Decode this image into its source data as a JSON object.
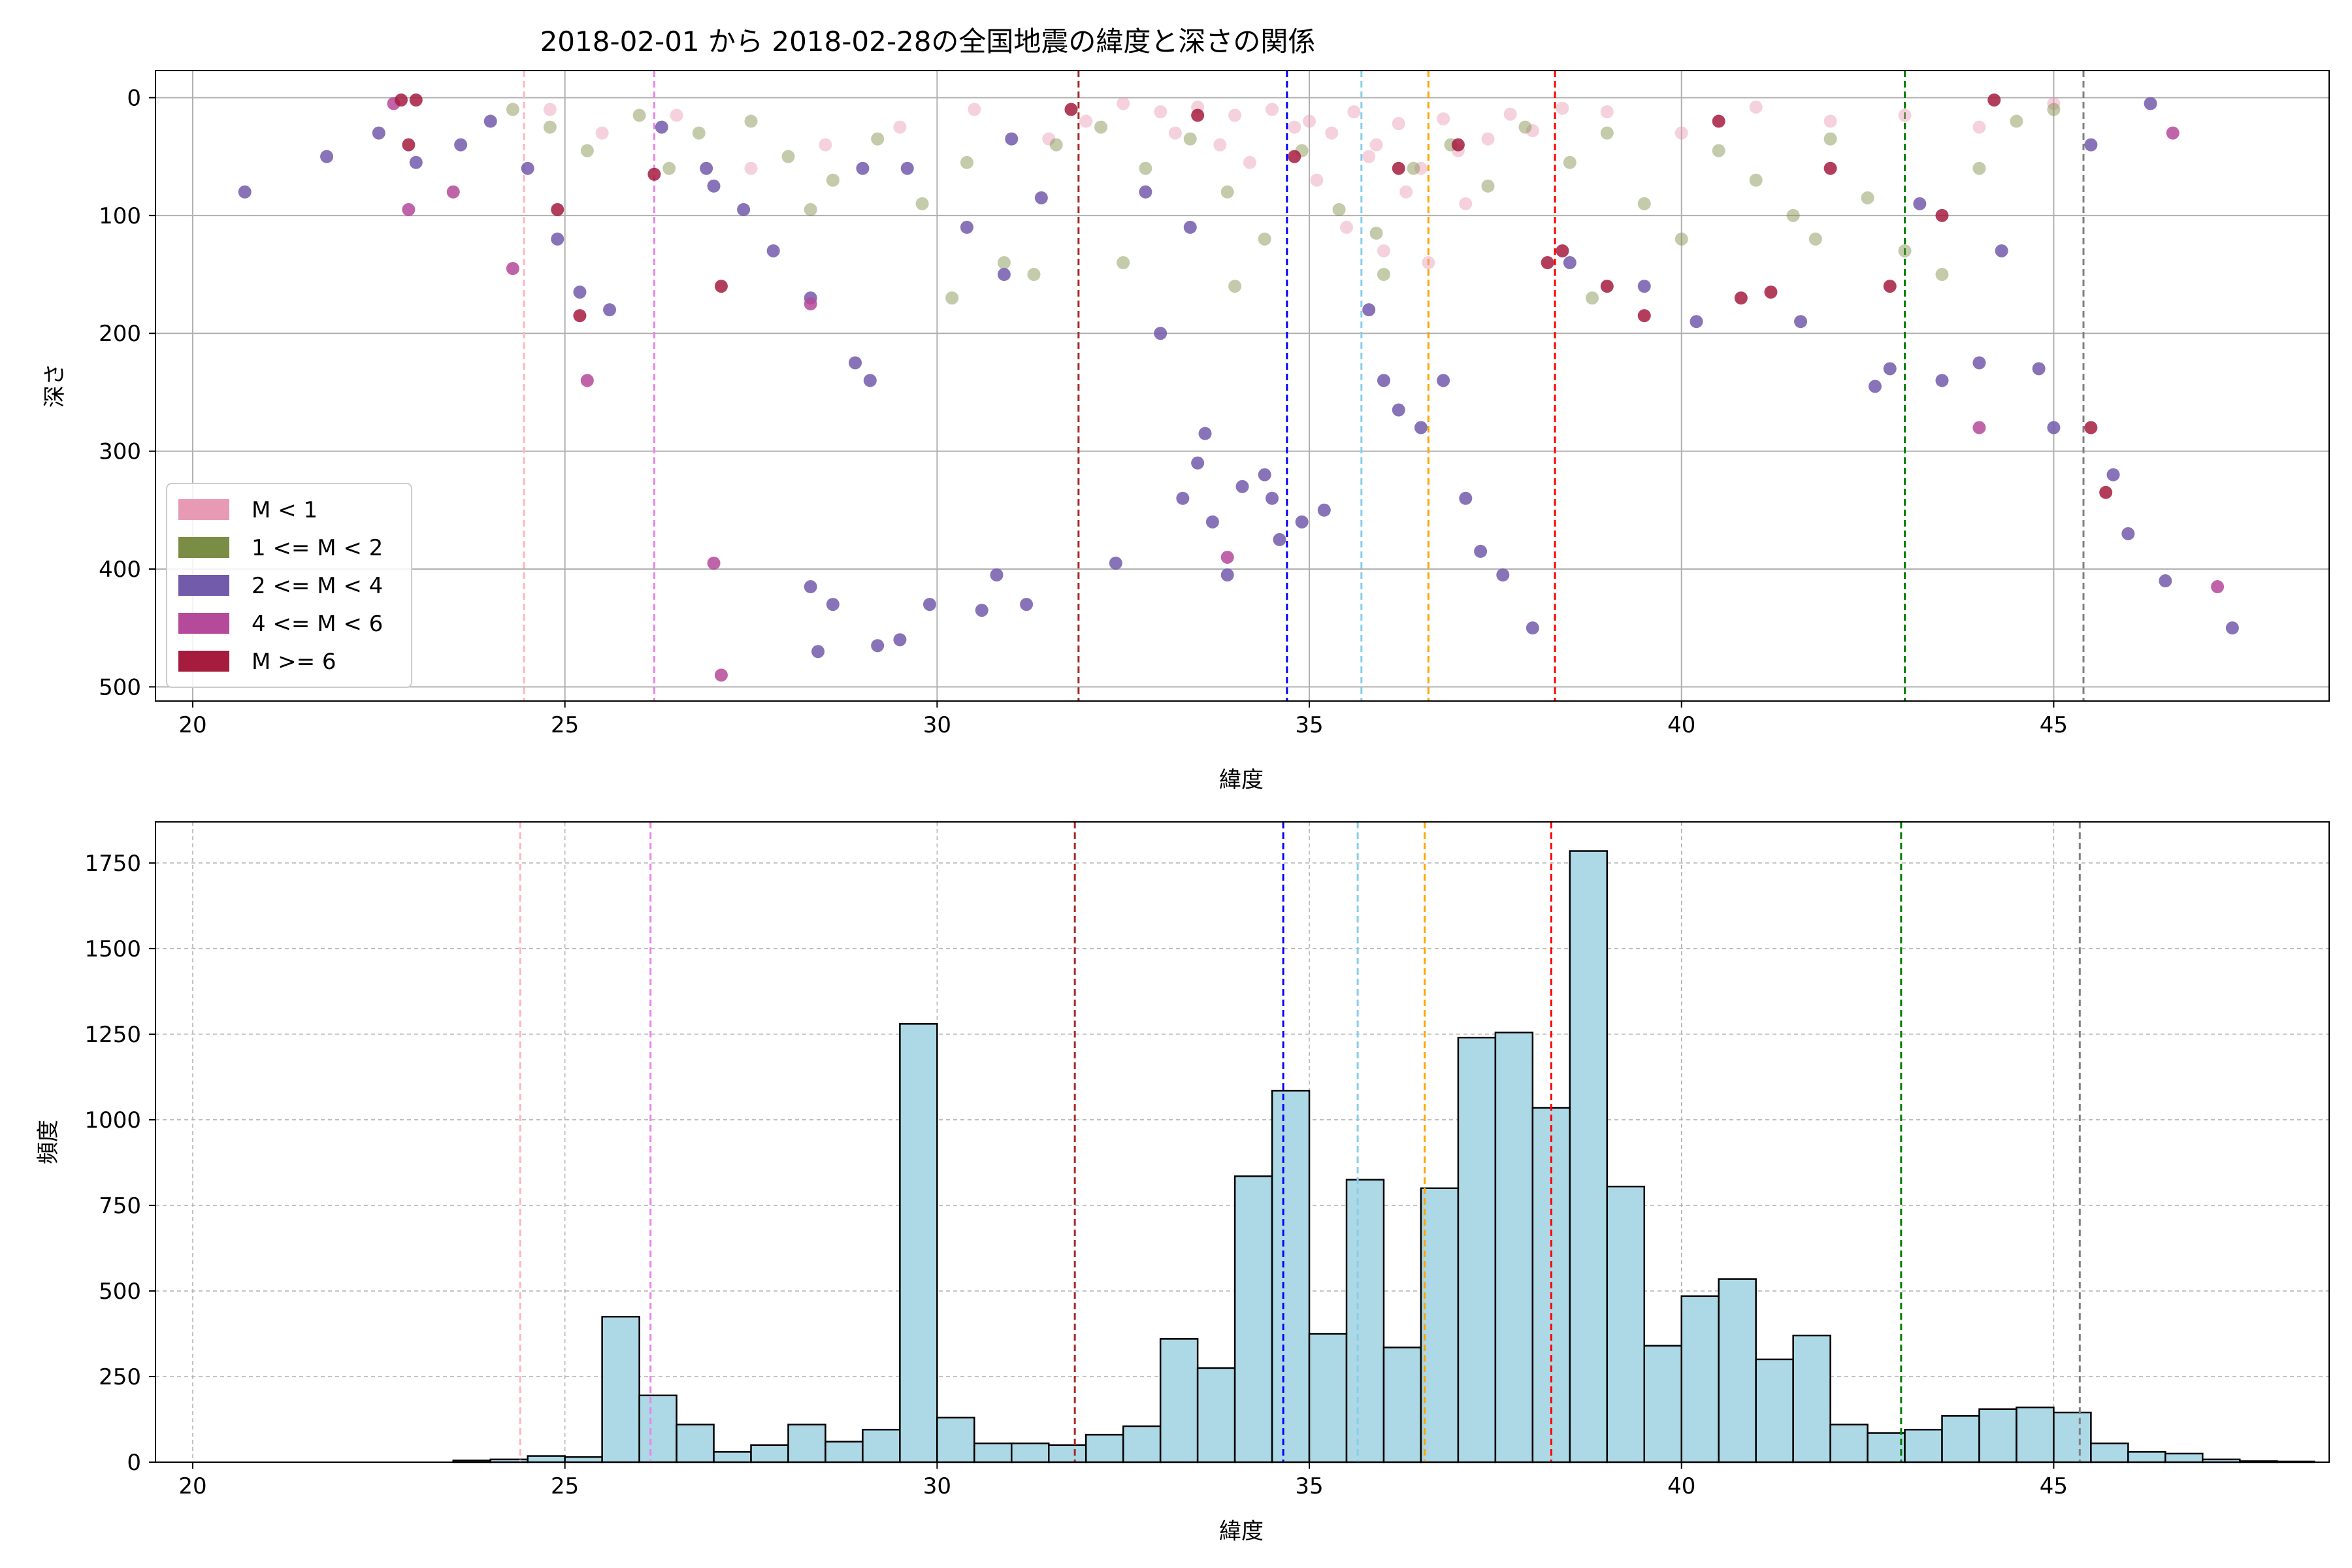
{
  "chart_data": [
    {
      "type": "scatter",
      "title": "2018-02-01 から 2018-02-28の全国地震の緯度と深さの関係",
      "xlabel": "緯度",
      "ylabel": "深さ",
      "xlim": [
        19.5,
        48.7
      ],
      "ylim": [
        512,
        -23
      ],
      "y_inverted": true,
      "grid": true,
      "legend_position": "lower-left",
      "xticks": [
        20,
        25,
        30,
        35,
        40,
        45
      ],
      "yticks": [
        0,
        100,
        200,
        300,
        400,
        500
      ],
      "vertical_lines": [
        {
          "x": 24.45,
          "color": "#ffb6c1"
        },
        {
          "x": 26.2,
          "color": "#ee82ee"
        },
        {
          "x": 31.9,
          "color": "#a52a2a"
        },
        {
          "x": 34.7,
          "color": "#0000ff"
        },
        {
          "x": 35.7,
          "color": "#87ceeb"
        },
        {
          "x": 36.6,
          "color": "#ffa500"
        },
        {
          "x": 38.3,
          "color": "#ff0000"
        },
        {
          "x": 43.0,
          "color": "#008000"
        },
        {
          "x": 45.4,
          "color": "#808080"
        }
      ],
      "series": [
        {
          "name": "M < 1",
          "color": "#e89ab4",
          "points": [
            [
              32.5,
              5
            ],
            [
              33.0,
              12
            ],
            [
              33.5,
              8
            ],
            [
              34.0,
              15
            ],
            [
              34.5,
              10
            ],
            [
              35.0,
              20
            ],
            [
              35.3,
              30
            ],
            [
              35.6,
              12
            ],
            [
              35.9,
              40
            ],
            [
              36.2,
              22
            ],
            [
              36.5,
              60
            ],
            [
              36.8,
              18
            ],
            [
              37.1,
              90
            ],
            [
              37.4,
              35
            ],
            [
              37.7,
              14
            ],
            [
              38.0,
              28
            ],
            [
              38.4,
              9
            ],
            [
              33.2,
              30
            ],
            [
              33.8,
              40
            ],
            [
              34.2,
              55
            ],
            [
              34.8,
              25
            ],
            [
              35.1,
              70
            ],
            [
              35.5,
              110
            ],
            [
              35.8,
              50
            ],
            [
              36.0,
              130
            ],
            [
              36.3,
              80
            ],
            [
              36.6,
              140
            ],
            [
              37.0,
              45
            ],
            [
              32.0,
              20
            ],
            [
              31.5,
              35
            ],
            [
              30.5,
              10
            ],
            [
              29.5,
              25
            ],
            [
              28.5,
              40
            ],
            [
              27.5,
              60
            ],
            [
              26.5,
              15
            ],
            [
              25.5,
              30
            ],
            [
              24.8,
              10
            ],
            [
              41.0,
              8
            ],
            [
              42.0,
              20
            ],
            [
              43.0,
              15
            ],
            [
              44.0,
              25
            ],
            [
              45.0,
              5
            ],
            [
              39.0,
              12
            ],
            [
              40.0,
              30
            ]
          ]
        },
        {
          "name": "1 <= M < 2",
          "color": "#7b8c45",
          "points": [
            [
              24.3,
              10
            ],
            [
              24.8,
              25
            ],
            [
              25.3,
              45
            ],
            [
              26.0,
              15
            ],
            [
              26.8,
              30
            ],
            [
              27.5,
              20
            ],
            [
              28.0,
              50
            ],
            [
              28.6,
              70
            ],
            [
              29.2,
              35
            ],
            [
              29.8,
              90
            ],
            [
              30.4,
              55
            ],
            [
              30.9,
              140
            ],
            [
              31.3,
              150
            ],
            [
              31.6,
              40
            ],
            [
              32.2,
              25
            ],
            [
              32.8,
              60
            ],
            [
              33.4,
              35
            ],
            [
              33.9,
              80
            ],
            [
              34.4,
              120
            ],
            [
              34.9,
              45
            ],
            [
              35.4,
              95
            ],
            [
              35.9,
              115
            ],
            [
              36.4,
              60
            ],
            [
              36.9,
              40
            ],
            [
              37.4,
              75
            ],
            [
              37.9,
              25
            ],
            [
              38.5,
              55
            ],
            [
              39.0,
              30
            ],
            [
              39.5,
              90
            ],
            [
              40.0,
              120
            ],
            [
              40.5,
              45
            ],
            [
              41.0,
              70
            ],
            [
              41.5,
              100
            ],
            [
              42.0,
              35
            ],
            [
              42.5,
              85
            ],
            [
              43.0,
              130
            ],
            [
              43.5,
              150
            ],
            [
              44.0,
              60
            ],
            [
              44.5,
              20
            ],
            [
              45.0,
              10
            ],
            [
              26.4,
              60
            ],
            [
              28.3,
              95
            ],
            [
              30.2,
              170
            ],
            [
              32.5,
              140
            ],
            [
              34.0,
              160
            ],
            [
              36.0,
              150
            ],
            [
              38.8,
              170
            ],
            [
              41.8,
              120
            ]
          ]
        },
        {
          "name": "2 <= M < 4",
          "color": "#735bab",
          "points": [
            [
              20.7,
              80
            ],
            [
              21.8,
              50
            ],
            [
              22.5,
              30
            ],
            [
              23.0,
              55
            ],
            [
              23.6,
              40
            ],
            [
              24.0,
              20
            ],
            [
              24.5,
              60
            ],
            [
              24.9,
              120
            ],
            [
              25.2,
              165
            ],
            [
              25.6,
              180
            ],
            [
              26.3,
              25
            ],
            [
              26.9,
              60
            ],
            [
              27.4,
              95
            ],
            [
              27.8,
              130
            ],
            [
              28.3,
              170
            ],
            [
              28.9,
              225
            ],
            [
              29.1,
              240
            ],
            [
              29.6,
              60
            ],
            [
              30.4,
              110
            ],
            [
              30.9,
              150
            ],
            [
              31.4,
              85
            ],
            [
              32.4,
              395
            ],
            [
              33.0,
              200
            ],
            [
              33.4,
              110
            ],
            [
              33.6,
              285
            ],
            [
              33.5,
              310
            ],
            [
              33.3,
              340
            ],
            [
              33.7,
              360
            ],
            [
              33.9,
              405
            ],
            [
              34.1,
              330
            ],
            [
              34.4,
              320
            ],
            [
              34.6,
              375
            ],
            [
              34.5,
              340
            ],
            [
              34.9,
              360
            ],
            [
              35.2,
              350
            ],
            [
              36.0,
              240
            ],
            [
              36.2,
              265
            ],
            [
              36.5,
              280
            ],
            [
              37.1,
              340
            ],
            [
              37.3,
              385
            ],
            [
              37.6,
              405
            ],
            [
              38.0,
              450
            ],
            [
              28.3,
              415
            ],
            [
              28.4,
              470
            ],
            [
              28.6,
              430
            ],
            [
              29.2,
              465
            ],
            [
              29.5,
              460
            ],
            [
              29.9,
              430
            ],
            [
              30.6,
              435
            ],
            [
              30.8,
              405
            ],
            [
              31.2,
              430
            ],
            [
              36.8,
              240
            ],
            [
              42.6,
              245
            ],
            [
              42.8,
              230
            ],
            [
              43.5,
              240
            ],
            [
              44.0,
              225
            ],
            [
              44.8,
              230
            ],
            [
              45.0,
              280
            ],
            [
              45.8,
              320
            ],
            [
              46.0,
              370
            ],
            [
              46.5,
              410
            ],
            [
              47.4,
              450
            ],
            [
              43.2,
              90
            ],
            [
              44.3,
              130
            ],
            [
              45.5,
              40
            ],
            [
              46.3,
              5
            ],
            [
              39.5,
              160
            ],
            [
              40.2,
              190
            ],
            [
              41.6,
              190
            ],
            [
              38.5,
              140
            ],
            [
              35.8,
              180
            ],
            [
              32.8,
              80
            ],
            [
              31.0,
              35
            ],
            [
              29.0,
              60
            ],
            [
              27.0,
              75
            ]
          ]
        },
        {
          "name": "4 <= M < 6",
          "color": "#b5499a",
          "points": [
            [
              22.7,
              5
            ],
            [
              22.9,
              95
            ],
            [
              23.5,
              80
            ],
            [
              24.3,
              145
            ],
            [
              25.3,
              240
            ],
            [
              27.0,
              395
            ],
            [
              27.1,
              490
            ],
            [
              28.3,
              175
            ],
            [
              33.9,
              390
            ],
            [
              44.0,
              280
            ],
            [
              46.6,
              30
            ],
            [
              47.2,
              415
            ]
          ]
        },
        {
          "name": "M >= 6",
          "color": "#a51c3f",
          "points": [
            [
              22.8,
              2
            ],
            [
              23.0,
              2
            ],
            [
              22.9,
              40
            ],
            [
              24.9,
              95
            ],
            [
              25.2,
              185
            ],
            [
              26.2,
              65
            ],
            [
              27.1,
              160
            ],
            [
              31.8,
              10
            ],
            [
              33.5,
              15
            ],
            [
              34.8,
              50
            ],
            [
              36.2,
              60
            ],
            [
              37.0,
              40
            ],
            [
              38.2,
              140
            ],
            [
              38.4,
              130
            ],
            [
              39.0,
              160
            ],
            [
              39.5,
              185
            ],
            [
              40.8,
              170
            ],
            [
              41.2,
              165
            ],
            [
              42.0,
              60
            ],
            [
              42.8,
              160
            ],
            [
              43.5,
              100
            ],
            [
              45.5,
              280
            ],
            [
              45.7,
              335
            ],
            [
              44.2,
              2
            ],
            [
              40.5,
              20
            ]
          ]
        }
      ]
    },
    {
      "type": "bar",
      "title": "",
      "xlabel": "緯度",
      "ylabel": "頻度",
      "xlim": [
        19.5,
        48.7
      ],
      "ylim": [
        0,
        1870
      ],
      "grid": true,
      "xticks": [
        20,
        25,
        30,
        35,
        40,
        45
      ],
      "yticks": [
        0,
        250,
        500,
        750,
        1000,
        1250,
        1500,
        1750
      ],
      "bar_color": "#add8e6",
      "bin_width": 0.5,
      "bin_start": 20.0,
      "values": [
        0,
        0,
        0,
        0,
        0,
        0,
        0,
        5,
        8,
        18,
        15,
        425,
        195,
        110,
        30,
        50,
        110,
        60,
        95,
        1280,
        130,
        55,
        55,
        50,
        80,
        105,
        360,
        275,
        835,
        1085,
        375,
        825,
        335,
        800,
        1240,
        1255,
        1035,
        1785,
        805,
        340,
        485,
        535,
        300,
        370,
        110,
        85,
        95,
        135,
        155,
        160,
        145,
        55,
        30,
        25,
        8,
        3,
        2,
        0,
        0
      ]
    }
  ]
}
